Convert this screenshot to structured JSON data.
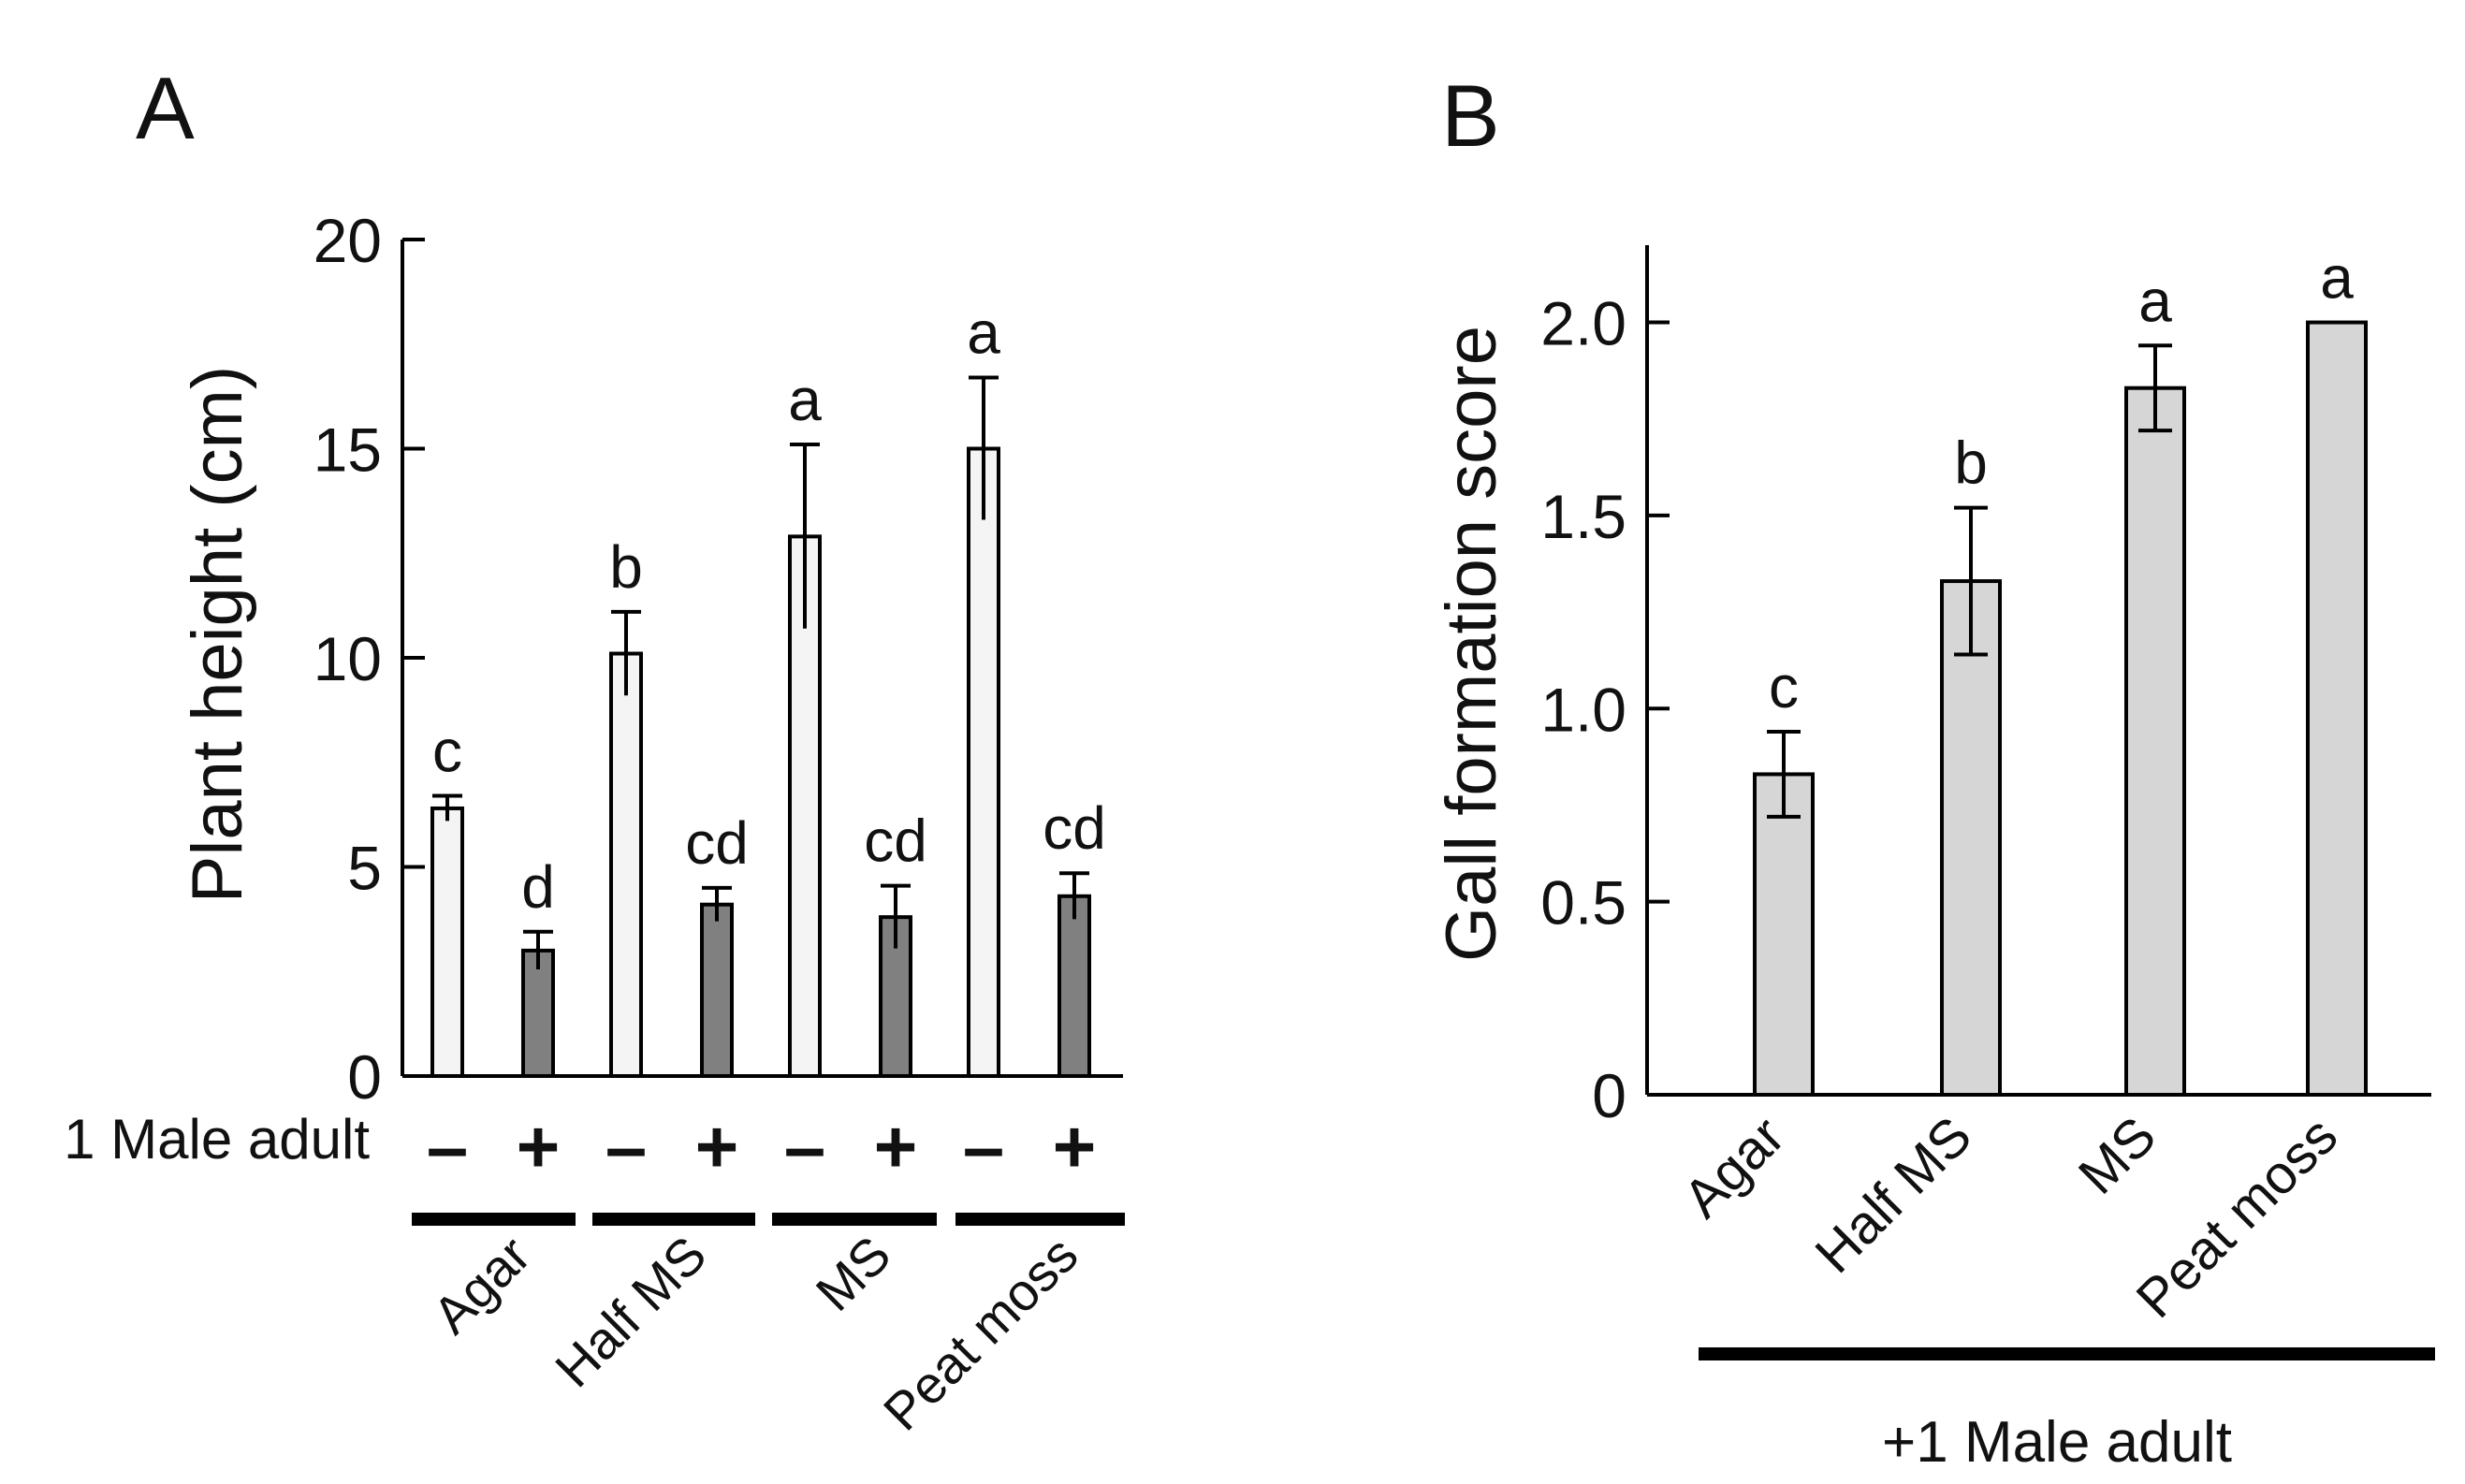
{
  "chart_data": [
    {
      "panel_label": "A",
      "type": "bar",
      "ylabel": "Plant height (cm)",
      "ylim": [
        0,
        20
      ],
      "yticks": [
        0,
        5,
        10,
        15,
        20
      ],
      "treatment_label": "1 Male adult",
      "groups": [
        "Agar",
        "Half MS",
        "MS",
        "Peat moss"
      ],
      "treatment_signs": [
        "–",
        "+"
      ],
      "series": [
        {
          "name": "–",
          "color": "#f4f4f4",
          "values": [
            6.4,
            10.1,
            12.9,
            15.0
          ],
          "errors": [
            0.3,
            1.0,
            2.2,
            1.7
          ],
          "letters": [
            "c",
            "b",
            "a",
            "a"
          ]
        },
        {
          "name": "+",
          "color": "#808080",
          "values": [
            3.0,
            4.1,
            3.8,
            4.3
          ],
          "errors": [
            0.45,
            0.4,
            0.75,
            0.55
          ],
          "letters": [
            "d",
            "cd",
            "cd",
            "cd"
          ]
        }
      ]
    },
    {
      "panel_label": "B",
      "type": "bar",
      "ylabel": "Gall formation score",
      "ylim": [
        0,
        2.2
      ],
      "yticks": [
        "0",
        "0.5",
        "1.0",
        "1.5",
        "2.0"
      ],
      "ytick_values": [
        0,
        0.5,
        1.0,
        1.5,
        2.0
      ],
      "categories": [
        "Agar",
        "Half MS",
        "MS",
        "Peat moss"
      ],
      "values": [
        0.83,
        1.33,
        1.83,
        2.0
      ],
      "errors": [
        0.11,
        0.19,
        0.11,
        0
      ],
      "letters": [
        "c",
        "b",
        "a",
        "a"
      ],
      "color": "#d6d6d6",
      "xlabel": "+1 Male adult"
    }
  ]
}
